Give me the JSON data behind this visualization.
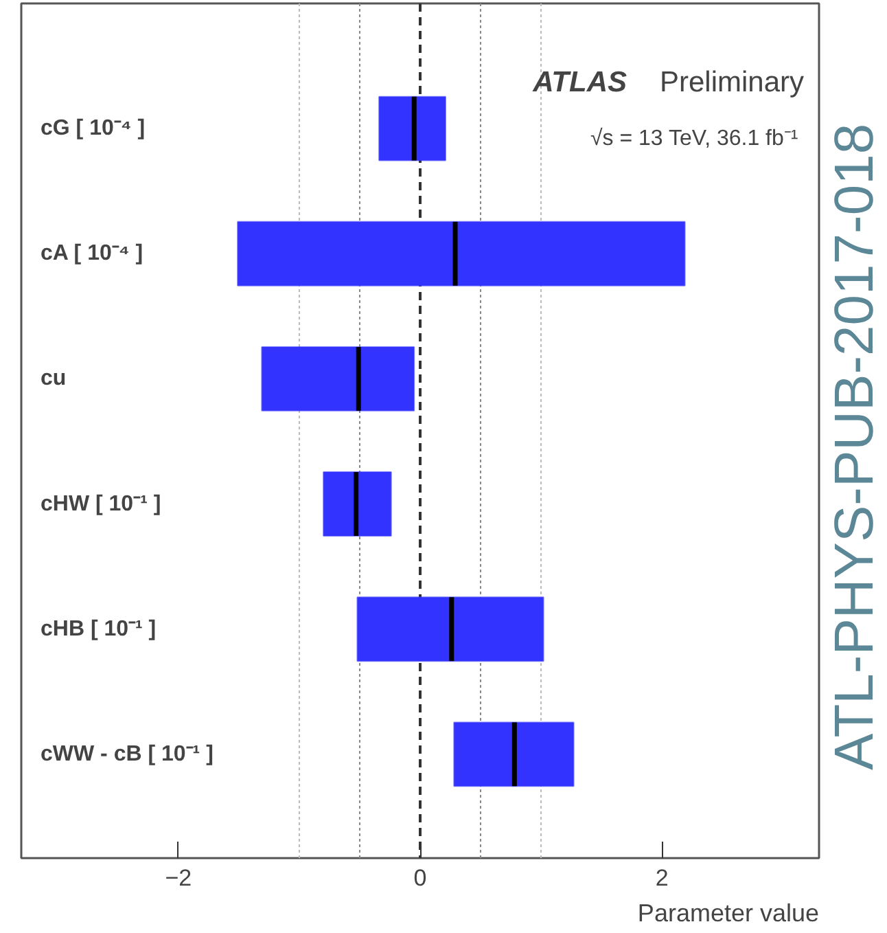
{
  "chart_data": {
    "type": "box",
    "orientation": "horizontal",
    "categories": [
      "cG [ 10⁻⁴ ]",
      "cA [ 10⁻⁴ ]",
      "cu",
      "cHW [ 10⁻¹ ]",
      "cHB [ 10⁻¹ ]",
      "cWW - cB [ 10⁻¹ ]"
    ],
    "series": [
      {
        "color": "#3333ff",
        "boxes": [
          {
            "low": -0.34,
            "q1": -0.34,
            "median": -0.05,
            "q3": 0.21,
            "high": 0.21
          },
          {
            "low": -1.51,
            "q1": -1.51,
            "median": 0.29,
            "q3": 2.19,
            "high": 2.19
          },
          {
            "low": -1.31,
            "q1": -1.31,
            "median": -0.51,
            "q3": -0.05,
            "high": -0.05
          },
          {
            "low": -0.8,
            "q1": -0.8,
            "median": -0.53,
            "q3": -0.24,
            "high": -0.24
          },
          {
            "low": -0.52,
            "q1": -0.52,
            "median": 0.26,
            "q3": 1.02,
            "high": 1.02
          },
          {
            "low": 0.28,
            "q1": 0.28,
            "median": 0.78,
            "q3": 1.27,
            "high": 1.27
          }
        ]
      }
    ],
    "xlim": [
      -3.3,
      3.3
    ],
    "xticks": [
      -2,
      0,
      2
    ],
    "xlabel": "Parameter value",
    "grid": false,
    "ref_lines": [
      {
        "axis": "x",
        "value": 0,
        "color": "#333333",
        "line_style": "dashed"
      },
      {
        "axis": "x",
        "value": -1,
        "color": "#bbbbbb",
        "line_style": "dotted"
      },
      {
        "axis": "x",
        "value": -0.5,
        "color": "#888888",
        "line_style": "dotted"
      },
      {
        "axis": "x",
        "value": 0.5,
        "color": "#888888",
        "line_style": "dotted"
      },
      {
        "axis": "x",
        "value": 1,
        "color": "#bbbbbb",
        "line_style": "dotted"
      }
    ],
    "annotations": [
      "ATLAS",
      "Preliminary",
      "√s = 13 TeV, 36.1 fb⁻¹",
      "ATL-PHYS-PUB-2017-018"
    ]
  }
}
